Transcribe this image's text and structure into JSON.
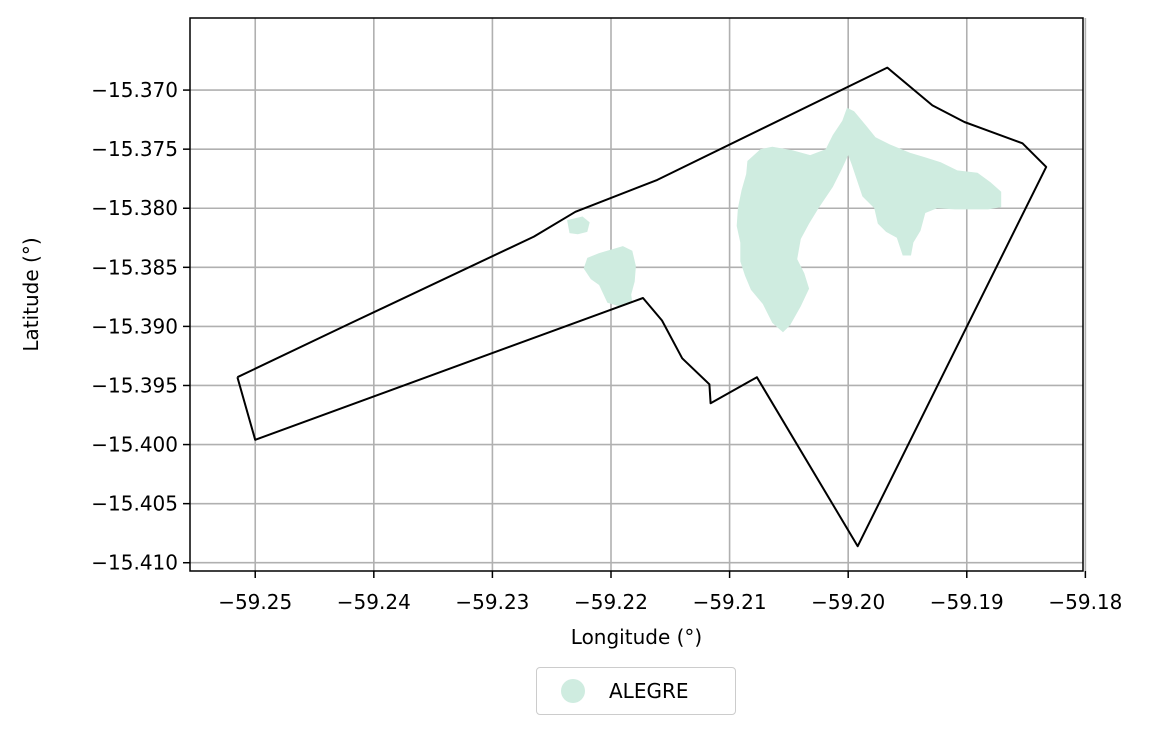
{
  "chart_data": {
    "type": "map",
    "xlabel": "Longitude (°)",
    "ylabel": "Latitude (°)",
    "xlim": [
      -59.2555,
      -59.1802
    ],
    "ylim": [
      -15.4107,
      -15.3639
    ],
    "xticks": [
      -59.25,
      -59.24,
      -59.23,
      -59.22,
      -59.21,
      -59.2,
      -59.19,
      -59.18
    ],
    "yticks": [
      -15.37,
      -15.375,
      -15.38,
      -15.385,
      -15.39,
      -15.395,
      -15.4,
      -15.405,
      -15.41
    ],
    "xtick_labels": [
      "−59.25",
      "−59.24",
      "−59.23",
      "−59.22",
      "−59.21",
      "−59.20",
      "−59.19",
      "−59.18"
    ],
    "ytick_labels": [
      "−15.370",
      "−15.375",
      "−15.380",
      "−15.385",
      "−15.390",
      "−15.395",
      "−15.400",
      "−15.405",
      "−15.410"
    ],
    "grid": true,
    "legend_position": "below",
    "legend": [
      {
        "name": "ALEGRE",
        "color": "#cfece0"
      }
    ],
    "boundary": {
      "stroke": "#000000",
      "points": [
        [
          -59.2515,
          -15.3943
        ],
        [
          -59.2421,
          -15.3898
        ],
        [
          -59.2265,
          -15.3824
        ],
        [
          -59.223,
          -15.3803
        ],
        [
          -59.2161,
          -15.3776
        ],
        [
          -59.1967,
          -15.3681
        ],
        [
          -59.1929,
          -15.3713
        ],
        [
          -59.1902,
          -15.3727
        ],
        [
          -59.1853,
          -15.3745
        ],
        [
          -59.1833,
          -15.3765
        ],
        [
          -59.1992,
          -15.4086
        ],
        [
          -59.2077,
          -15.3943
        ],
        [
          -59.2116,
          -15.3965
        ],
        [
          -59.2117,
          -15.3949
        ],
        [
          -59.214,
          -15.3927
        ],
        [
          -59.2157,
          -15.3895
        ],
        [
          -59.2173,
          -15.3876
        ],
        [
          -59.25,
          -15.3996
        ],
        [
          -59.2515,
          -15.3943
        ]
      ]
    },
    "regions": [
      {
        "name": "ALEGRE",
        "color": "#cfece0",
        "polygons": [
          [
            [
              -59.2086,
              -15.3771
            ],
            [
              -59.2085,
              -15.376
            ],
            [
              -59.2074,
              -15.375
            ],
            [
              -59.2064,
              -15.3748
            ],
            [
              -59.2047,
              -15.3751
            ],
            [
              -59.2032,
              -15.3755
            ],
            [
              -59.2019,
              -15.375
            ],
            [
              -59.2013,
              -15.3738
            ],
            [
              -59.2005,
              -15.3726
            ],
            [
              -59.2001,
              -15.3715
            ],
            [
              -59.1995,
              -15.3718
            ],
            [
              -59.1985,
              -15.373
            ],
            [
              -59.1977,
              -15.374
            ],
            [
              -59.1965,
              -15.3746
            ],
            [
              -59.1948,
              -15.3753
            ],
            [
              -59.1935,
              -15.3757
            ],
            [
              -59.1922,
              -15.3761
            ],
            [
              -59.1908,
              -15.3768
            ],
            [
              -59.1891,
              -15.377
            ],
            [
              -59.188,
              -15.3778
            ],
            [
              -59.1871,
              -15.3786
            ],
            [
              -59.1871,
              -15.3799
            ],
            [
              -59.1882,
              -15.3801
            ],
            [
              -59.191,
              -15.3801
            ],
            [
              -59.1925,
              -15.38
            ],
            [
              -59.1935,
              -15.3804
            ],
            [
              -59.1939,
              -15.3819
            ],
            [
              -59.1945,
              -15.3829
            ],
            [
              -59.1947,
              -15.384
            ],
            [
              -59.1954,
              -15.384
            ],
            [
              -59.1959,
              -15.3825
            ],
            [
              -59.1968,
              -15.382
            ],
            [
              -59.1975,
              -15.3813
            ],
            [
              -59.1978,
              -15.38
            ],
            [
              -59.1988,
              -15.379
            ],
            [
              -59.1997,
              -15.3763
            ],
            [
              -59.2,
              -15.3755
            ],
            [
              -59.2005,
              -15.3766
            ],
            [
              -59.2013,
              -15.3782
            ],
            [
              -59.2025,
              -15.38
            ],
            [
              -59.2033,
              -15.3813
            ],
            [
              -59.204,
              -15.3826
            ],
            [
              -59.2043,
              -15.3843
            ],
            [
              -59.2037,
              -15.3855
            ],
            [
              -59.2033,
              -15.3868
            ],
            [
              -59.204,
              -15.3883
            ],
            [
              -59.2049,
              -15.3899
            ],
            [
              -59.2055,
              -15.3905
            ],
            [
              -59.2064,
              -15.3897
            ],
            [
              -59.2072,
              -15.3881
            ],
            [
              -59.2082,
              -15.3869
            ],
            [
              -59.2087,
              -15.3857
            ],
            [
              -59.2091,
              -15.3845
            ],
            [
              -59.2091,
              -15.3829
            ],
            [
              -59.2094,
              -15.3815
            ],
            [
              -59.2093,
              -15.38
            ],
            [
              -59.209,
              -15.3785
            ],
            [
              -59.2086,
              -15.3771
            ]
          ],
          [
            [
              -59.2235,
              -15.3821
            ],
            [
              -59.2237,
              -15.381
            ],
            [
              -59.2224,
              -15.3807
            ],
            [
              -59.2218,
              -15.3812
            ],
            [
              -59.222,
              -15.382
            ],
            [
              -59.2228,
              -15.3822
            ],
            [
              -59.2235,
              -15.3821
            ]
          ],
          [
            [
              -59.2217,
              -15.386
            ],
            [
              -59.221,
              -15.3865
            ],
            [
              -59.2203,
              -15.388
            ],
            [
              -59.2193,
              -15.3883
            ],
            [
              -59.2182,
              -15.388
            ],
            [
              -59.2183,
              -15.3873
            ],
            [
              -59.218,
              -15.3862
            ],
            [
              -59.2179,
              -15.3849
            ],
            [
              -59.2182,
              -15.3836
            ],
            [
              -59.219,
              -15.3832
            ],
            [
              -59.22,
              -15.3835
            ],
            [
              -59.221,
              -15.3838
            ],
            [
              -59.222,
              -15.3842
            ],
            [
              -59.2223,
              -15.3851
            ],
            [
              -59.2217,
              -15.386
            ]
          ]
        ]
      }
    ]
  }
}
